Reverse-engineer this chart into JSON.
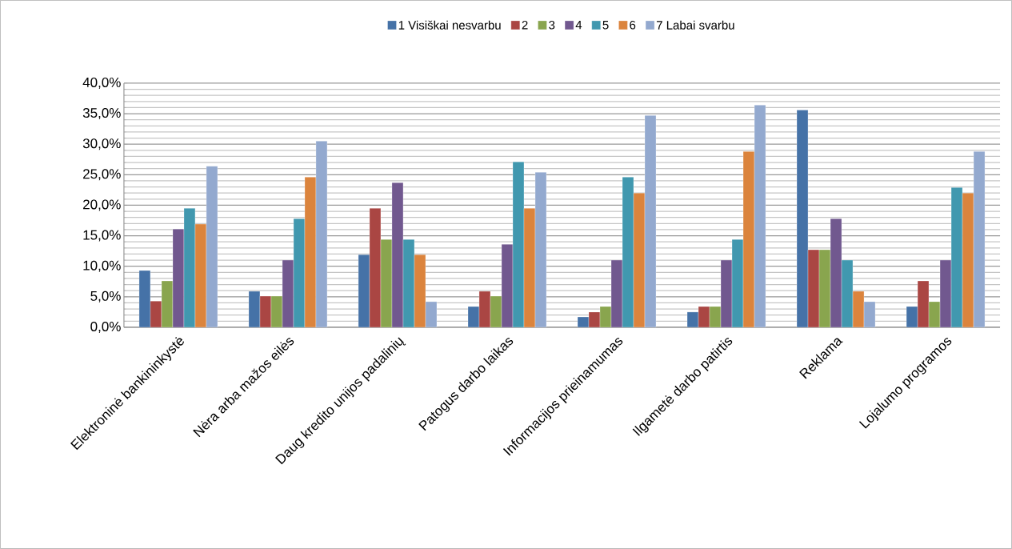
{
  "chart_data": {
    "type": "bar",
    "categories": [
      "Elektroninė bankininkystė",
      "Nėra arba mažos eilės",
      "Daug kredito unijos padalinių",
      "Patogus darbo laikas",
      "Informacijos prieinamumas",
      "Ilgametė darbo patirtis",
      "Reklama",
      "Lojalumo programos"
    ],
    "series": [
      {
        "name": "1 Visiškai nesvarbu",
        "color": "#4572a7",
        "values": [
          9.3,
          5.9,
          11.9,
          3.4,
          1.7,
          2.5,
          35.6,
          3.4
        ]
      },
      {
        "name": "2",
        "color": "#aa4643",
        "values": [
          4.3,
          5.1,
          19.5,
          5.9,
          2.5,
          3.4,
          12.7,
          7.6
        ]
      },
      {
        "name": "3",
        "color": "#89a54e",
        "values": [
          7.6,
          5.1,
          14.4,
          5.1,
          3.4,
          3.4,
          12.7,
          4.2
        ]
      },
      {
        "name": "4",
        "color": "#71588f",
        "values": [
          16.1,
          11.0,
          23.7,
          13.6,
          11.0,
          11.0,
          17.8,
          11.0
        ]
      },
      {
        "name": "5",
        "color": "#4198af",
        "values": [
          19.5,
          17.8,
          14.4,
          27.1,
          24.6,
          14.4,
          11.0,
          22.9
        ]
      },
      {
        "name": "6",
        "color": "#db843d",
        "values": [
          16.9,
          24.6,
          11.9,
          19.5,
          22.0,
          28.8,
          5.9,
          22.0
        ]
      },
      {
        "name": "7 Labai svarbu",
        "color": "#93a9cf",
        "values": [
          26.4,
          30.5,
          4.2,
          25.4,
          34.7,
          36.4,
          4.2,
          28.8
        ]
      }
    ],
    "ylim": [
      0,
      40
    ],
    "yticks": [
      {
        "value": 0,
        "label": "0,0%"
      },
      {
        "value": 5,
        "label": "5,0%"
      },
      {
        "value": 10,
        "label": "10,0%"
      },
      {
        "value": 15,
        "label": "15,0%"
      },
      {
        "value": 20,
        "label": "20,0%"
      },
      {
        "value": 25,
        "label": "25,0%"
      },
      {
        "value": 30,
        "label": "30,0%"
      },
      {
        "value": 35,
        "label": "35,0%"
      },
      {
        "value": 40,
        "label": "40,0%"
      }
    ],
    "grid": true,
    "legend": "top"
  }
}
